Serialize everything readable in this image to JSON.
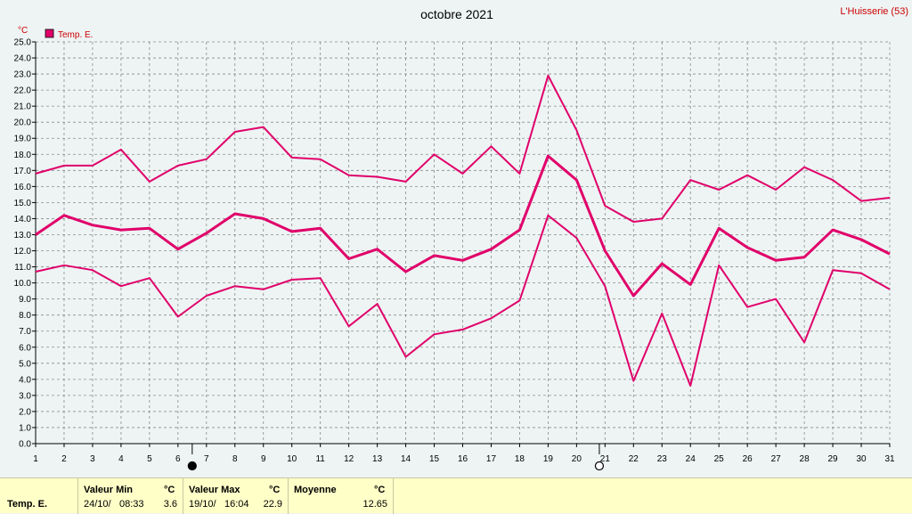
{
  "title": "octobre 2021",
  "station": "L'Huisserie (53)",
  "unit": "°C",
  "legend": {
    "label": "Temp. E.",
    "color": "#e0006a"
  },
  "moon": {
    "full_moon_day": 20.8,
    "new_moon_day": 6.5
  },
  "chart_data": {
    "type": "line",
    "title": "octobre 2021",
    "ylabel": "°C",
    "ylim": [
      0,
      25
    ],
    "ystep": 1,
    "grid": true,
    "legend_position": "top-left",
    "x": [
      1,
      2,
      3,
      4,
      5,
      6,
      7,
      8,
      9,
      10,
      11,
      12,
      13,
      14,
      15,
      16,
      17,
      18,
      19,
      20,
      21,
      22,
      23,
      24,
      25,
      26,
      27,
      28,
      29,
      30,
      31
    ],
    "series": [
      {
        "name": "Temp. E.",
        "role": "max",
        "color": "#e0006a",
        "values": [
          16.8,
          17.3,
          17.3,
          18.3,
          16.3,
          17.3,
          17.7,
          19.4,
          19.7,
          17.8,
          17.7,
          16.7,
          16.6,
          16.3,
          18.0,
          16.8,
          18.5,
          16.8,
          22.9,
          19.5,
          14.8,
          13.8,
          14.0,
          16.4,
          15.8,
          16.7,
          15.8,
          17.2,
          16.4,
          15.1,
          15.3
        ]
      },
      {
        "name": "Temp. E.",
        "role": "mean",
        "color": "#e0006a",
        "values": [
          13.0,
          14.2,
          13.6,
          13.3,
          13.4,
          12.1,
          13.1,
          14.3,
          14.0,
          13.2,
          13.4,
          11.5,
          12.1,
          10.7,
          11.7,
          11.4,
          12.1,
          13.3,
          17.9,
          16.4,
          12.0,
          9.2,
          11.2,
          9.9,
          13.4,
          12.2,
          11.4,
          11.6,
          13.3,
          12.7,
          11.8
        ]
      },
      {
        "name": "Temp. E.",
        "role": "min",
        "color": "#e0006a",
        "values": [
          10.7,
          11.1,
          10.8,
          9.8,
          10.3,
          7.9,
          9.2,
          9.8,
          9.6,
          10.2,
          10.3,
          7.3,
          8.7,
          5.4,
          6.8,
          7.1,
          7.8,
          8.9,
          14.2,
          12.8,
          9.8,
          3.9,
          8.1,
          3.6,
          11.1,
          8.5,
          9.0,
          6.3,
          10.8,
          10.6,
          9.6
        ]
      }
    ]
  },
  "stats": {
    "series_name": "Temp. E.",
    "min": {
      "header": "Valeur Min",
      "unit": "°C",
      "date": "24/10/",
      "time": "08:33",
      "value": "3.6"
    },
    "max": {
      "header": "Valeur Max",
      "unit": "°C",
      "date": "19/10/",
      "time": "16:04",
      "value": "22.9"
    },
    "mean": {
      "header": "Moyenne",
      "unit": "°C",
      "value": "12.65"
    }
  }
}
